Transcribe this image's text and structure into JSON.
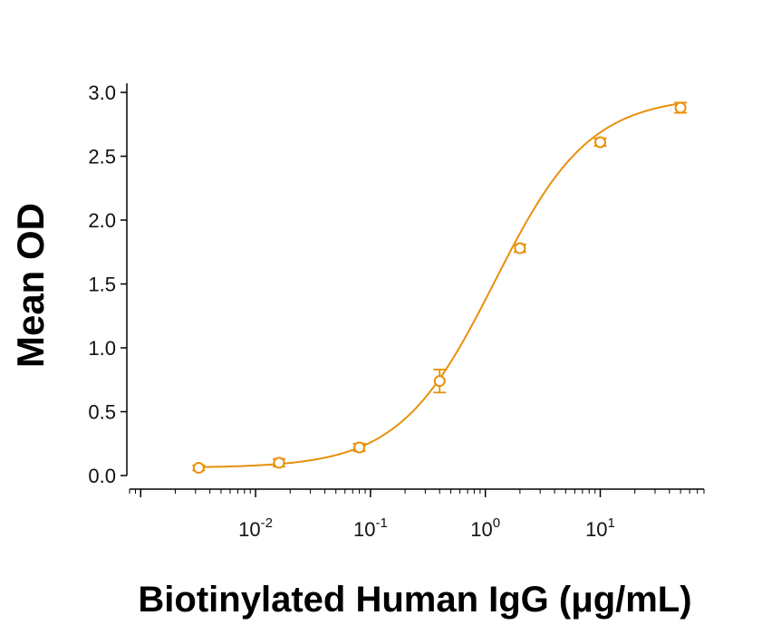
{
  "chart_data": {
    "type": "scatter",
    "xlabel": "Biotinylated Human IgG (μg/mL)",
    "ylabel": "Mean OD",
    "xscale": "log",
    "xlim": [
      0.0008,
      80
    ],
    "ylim": [
      0,
      3.0
    ],
    "yticks": [
      "0.0",
      "0.5",
      "1.0",
      "1.5",
      "2.0",
      "2.5",
      "3.0"
    ],
    "xticks": [
      {
        "value": 0.01,
        "base": "10",
        "exp": "-2"
      },
      {
        "value": 0.1,
        "base": "10",
        "exp": "-1"
      },
      {
        "value": 1,
        "base": "10",
        "exp": "0"
      },
      {
        "value": 10,
        "base": "10",
        "exp": "1"
      }
    ],
    "grid": false,
    "color": "#E8900A",
    "series": [
      {
        "x": [
          0.0032,
          0.016,
          0.08,
          0.4,
          2,
          10,
          50
        ],
        "y": [
          0.06,
          0.1,
          0.22,
          0.74,
          1.78,
          2.61,
          2.88
        ],
        "err": [
          0.02,
          0.03,
          0.03,
          0.09,
          0.03,
          0.03,
          0.04
        ]
      }
    ],
    "fit": {
      "type": "4PL",
      "bottom": 0.06,
      "top": 2.97,
      "ec50": 1.2,
      "hill": 1.05
    }
  }
}
